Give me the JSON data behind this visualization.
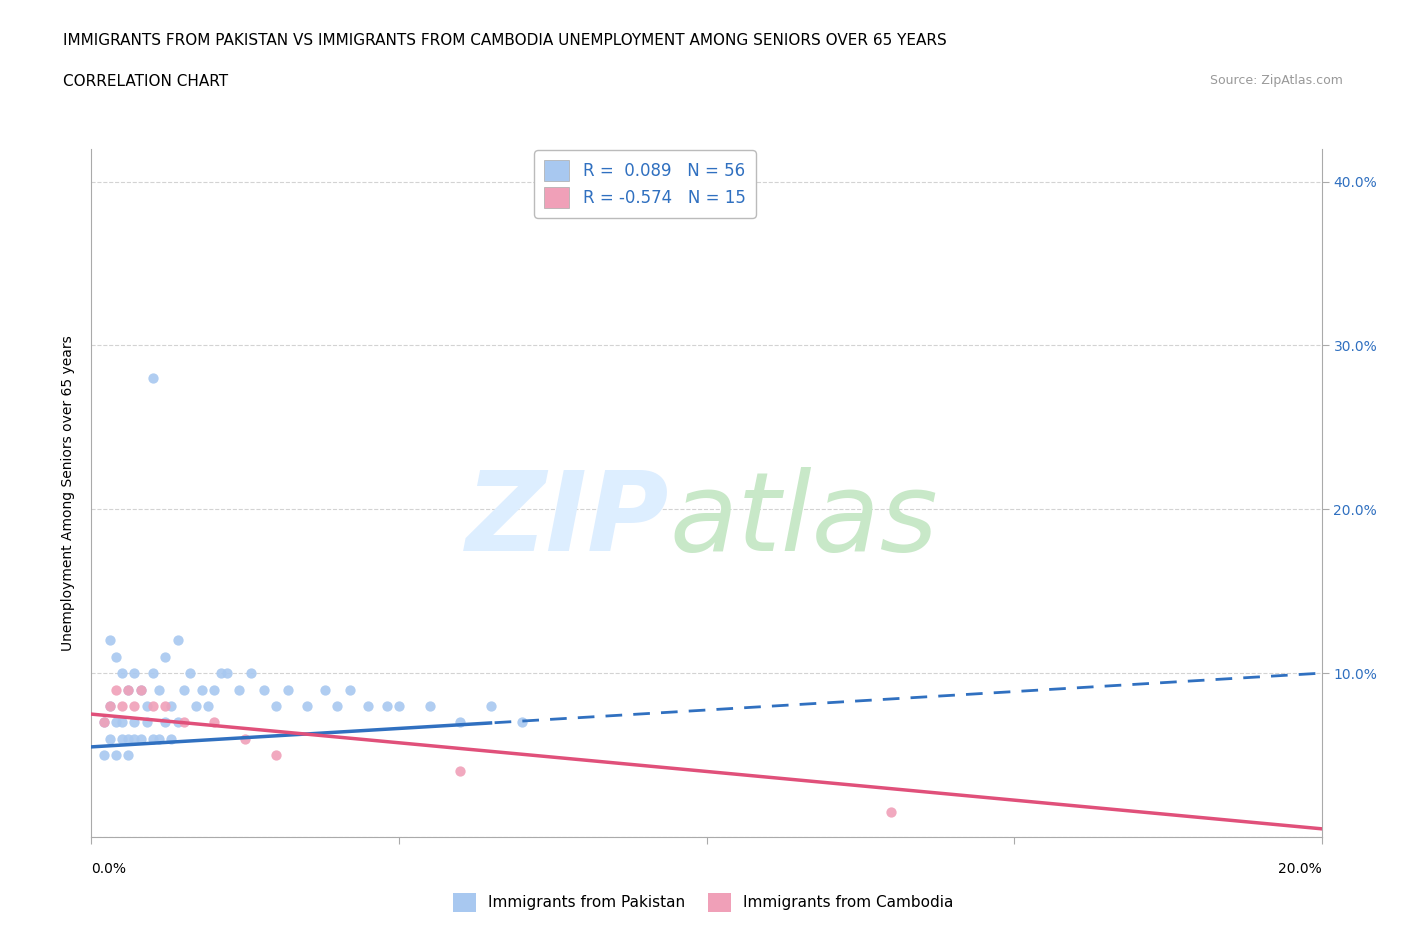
{
  "title_line1": "IMMIGRANTS FROM PAKISTAN VS IMMIGRANTS FROM CAMBODIA UNEMPLOYMENT AMONG SENIORS OVER 65 YEARS",
  "title_line2": "CORRELATION CHART",
  "source_text": "Source: ZipAtlas.com",
  "ylabel": "Unemployment Among Seniors over 65 years",
  "pakistan_color": "#a8c8f0",
  "pakistan_line_color": "#3070c0",
  "cambodia_color": "#f0a0b8",
  "cambodia_line_color": "#e0507a",
  "pakistan_R": 0.089,
  "pakistan_N": 56,
  "cambodia_R": -0.574,
  "cambodia_N": 15,
  "xlim": [
    0.0,
    0.2
  ],
  "ylim": [
    0.0,
    0.42
  ],
  "grid_color": "#c8c8c8",
  "background_color": "#ffffff",
  "legend_text_color": "#3070c0",
  "pakistan_x": [
    0.01,
    0.003,
    0.004,
    0.005,
    0.006,
    0.007,
    0.008,
    0.009,
    0.01,
    0.011,
    0.012,
    0.013,
    0.014,
    0.015,
    0.016,
    0.017,
    0.018,
    0.019,
    0.02,
    0.021,
    0.022,
    0.024,
    0.026,
    0.028,
    0.03,
    0.032,
    0.035,
    0.038,
    0.04,
    0.042,
    0.045,
    0.048,
    0.05,
    0.055,
    0.06,
    0.065,
    0.07,
    0.002,
    0.003,
    0.004,
    0.005,
    0.006,
    0.007,
    0.008,
    0.009,
    0.01,
    0.011,
    0.012,
    0.013,
    0.014,
    0.002,
    0.003,
    0.004,
    0.005,
    0.006,
    0.007
  ],
  "pakistan_y": [
    0.28,
    0.12,
    0.11,
    0.1,
    0.09,
    0.1,
    0.09,
    0.08,
    0.1,
    0.09,
    0.11,
    0.08,
    0.12,
    0.09,
    0.1,
    0.08,
    0.09,
    0.08,
    0.09,
    0.1,
    0.1,
    0.09,
    0.1,
    0.09,
    0.08,
    0.09,
    0.08,
    0.09,
    0.08,
    0.09,
    0.08,
    0.08,
    0.08,
    0.08,
    0.07,
    0.08,
    0.07,
    0.07,
    0.08,
    0.07,
    0.07,
    0.06,
    0.07,
    0.06,
    0.07,
    0.06,
    0.06,
    0.07,
    0.06,
    0.07,
    0.05,
    0.06,
    0.05,
    0.06,
    0.05,
    0.06
  ],
  "cambodia_x": [
    0.002,
    0.003,
    0.004,
    0.005,
    0.006,
    0.007,
    0.008,
    0.01,
    0.012,
    0.015,
    0.02,
    0.025,
    0.03,
    0.06,
    0.13
  ],
  "cambodia_y": [
    0.07,
    0.08,
    0.09,
    0.08,
    0.09,
    0.08,
    0.09,
    0.08,
    0.08,
    0.07,
    0.07,
    0.06,
    0.05,
    0.04,
    0.015
  ],
  "pak_line_solid_end": 0.065,
  "cam_line_solid_end": 0.13
}
